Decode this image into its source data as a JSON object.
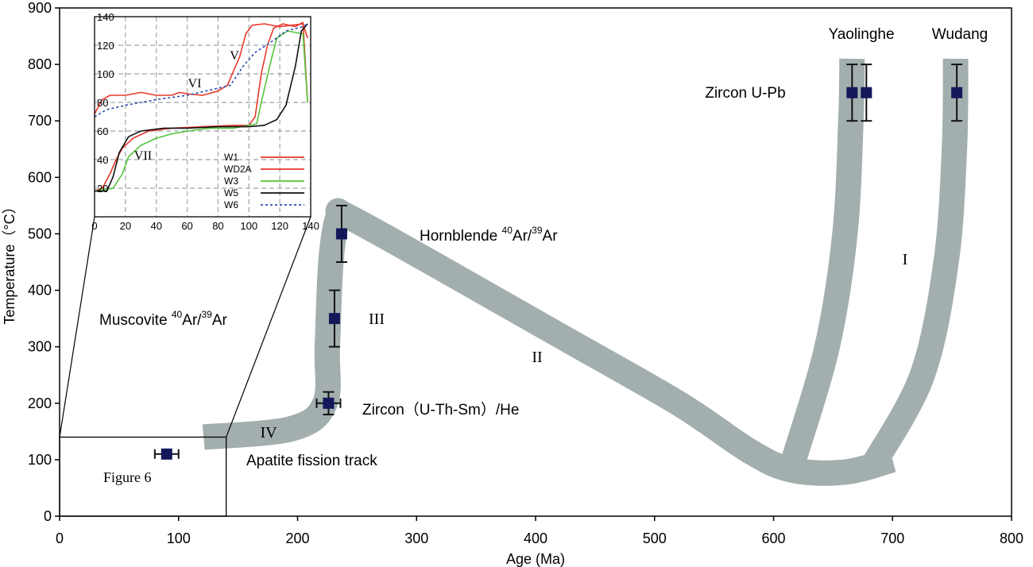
{
  "chart_data": {
    "type": "scatter",
    "xlabel": "Age (Ma)",
    "ylabel": "Temperature（°C）",
    "xlim": [
      0,
      800
    ],
    "ylim": [
      0,
      900
    ],
    "xticks": [
      0,
      100,
      200,
      300,
      400,
      500,
      600,
      700,
      800
    ],
    "yticks": [
      0,
      100,
      200,
      300,
      400,
      500,
      600,
      700,
      800,
      900
    ],
    "points": [
      {
        "name": "Zircon U-Pb (Yaolinghe)",
        "x": 666,
        "y": 750,
        "yerr": 50,
        "xerr": 0
      },
      {
        "name": "Zircon U-Pb (Yaolinghe)",
        "x": 678,
        "y": 750,
        "yerr": 50,
        "xerr": 0
      },
      {
        "name": "Zircon U-Pb (Wudang)",
        "x": 754,
        "y": 750,
        "yerr": 50,
        "xerr": 0
      },
      {
        "name": "Hornblende 40Ar/39Ar",
        "x": 237,
        "y": 500,
        "yerr": 50,
        "xerr": 0
      },
      {
        "name": "Muscovite 40Ar/39Ar",
        "x": 231,
        "y": 350,
        "yerr": 50,
        "xerr": 0
      },
      {
        "name": "Zircon (U-Th-Sm)/He",
        "x": 226,
        "y": 200,
        "yerr": 20,
        "xerr": 10
      },
      {
        "name": "Apatite fission track",
        "x": 90,
        "y": 110,
        "yerr": 0,
        "xerr": 10
      }
    ],
    "paths": [
      {
        "name": "Yaolinghe path",
        "points": [
          [
            617,
            100
          ],
          [
            645,
            300
          ],
          [
            660,
            500
          ],
          [
            665,
            700
          ],
          [
            666,
            810
          ]
        ]
      },
      {
        "name": "Wudang path",
        "points": [
          [
            685,
            95
          ],
          [
            725,
            250
          ],
          [
            745,
            450
          ],
          [
            752,
            650
          ],
          [
            753,
            810
          ]
        ]
      },
      {
        "name": "Main path",
        "points": [
          [
            121,
            140
          ],
          [
            195,
            155
          ],
          [
            223,
            200
          ],
          [
            225,
            300
          ],
          [
            228,
            450
          ],
          [
            234,
            530
          ],
          [
            243,
            530
          ],
          [
            320,
            440
          ],
          [
            420,
            320
          ],
          [
            520,
            200
          ],
          [
            580,
            115
          ],
          [
            615,
            82
          ],
          [
            660,
            78
          ],
          [
            700,
            100
          ]
        ]
      }
    ],
    "annotations": {
      "zircon_upb": "Zircon U-Pb",
      "yaolinghe": "Yaolinghe",
      "wudang": "Wudang",
      "hornblende_main": "Hornblende ",
      "hornblende_sup1": "40",
      "hornblende_mid": "Ar/",
      "hornblende_sup2": "39",
      "hornblende_end": "Ar",
      "muscovite_main": "Muscovite ",
      "muscovite_sup1": "40",
      "muscovite_mid": "Ar/",
      "muscovite_sup2": "39",
      "muscovite_end": "Ar",
      "zircon_he": "Zircon（U-Th-Sm）/He",
      "apatite": "Apatite fission track",
      "figure6": "Figure 6",
      "stage_I": "I",
      "stage_II": "II",
      "stage_III": "III",
      "stage_IV": "IV"
    },
    "inset": {
      "xlim": [
        0,
        140
      ],
      "ylim": [
        0,
        140
      ],
      "xticks": [
        0,
        20,
        40,
        60,
        80,
        100,
        120,
        140
      ],
      "yticks": [
        20,
        40,
        60,
        80,
        100,
        120,
        140
      ],
      "grid": true,
      "stage_labels": {
        "V": "V",
        "VI": "VI",
        "VII": "VII"
      },
      "series": [
        {
          "name": "W1",
          "color": "#e8382b",
          "dash": "",
          "points": [
            [
              0,
              18
            ],
            [
              5,
              20
            ],
            [
              10,
              30
            ],
            [
              14,
              40
            ],
            [
              18,
              48
            ],
            [
              25,
              55
            ],
            [
              35,
              60
            ],
            [
              50,
              62
            ],
            [
              70,
              63
            ],
            [
              90,
              64
            ],
            [
              100,
              64
            ],
            [
              104,
              70
            ],
            [
              108,
              100
            ],
            [
              112,
              120
            ],
            [
              116,
              132
            ],
            [
              122,
              135
            ],
            [
              130,
              133
            ],
            [
              135,
              136
            ],
            [
              138,
              80
            ]
          ]
        },
        {
          "name": "WD2A",
          "color": "#e8382b",
          "dash": "",
          "points": [
            [
              0,
              72
            ],
            [
              5,
              82
            ],
            [
              10,
              85
            ],
            [
              20,
              85
            ],
            [
              30,
              87
            ],
            [
              40,
              85
            ],
            [
              50,
              85
            ],
            [
              55,
              87
            ],
            [
              60,
              86
            ],
            [
              70,
              85
            ],
            [
              80,
              88
            ],
            [
              86,
              92
            ],
            [
              90,
              102
            ],
            [
              94,
              112
            ],
            [
              98,
              128
            ],
            [
              102,
              134
            ],
            [
              110,
              135
            ],
            [
              120,
              133
            ],
            [
              135,
              135
            ],
            [
              138,
              125
            ]
          ]
        },
        {
          "name": "W3",
          "color": "#55c43a",
          "dash": "",
          "points": [
            [
              0,
              18
            ],
            [
              12,
              20
            ],
            [
              18,
              30
            ],
            [
              22,
              42
            ],
            [
              30,
              50
            ],
            [
              40,
              55
            ],
            [
              50,
              58
            ],
            [
              60,
              60
            ],
            [
              75,
              62
            ],
            [
              90,
              62
            ],
            [
              105,
              65
            ],
            [
              108,
              80
            ],
            [
              114,
              108
            ],
            [
              118,
              125
            ],
            [
              125,
              130
            ],
            [
              135,
              128
            ],
            [
              138,
              80
            ]
          ]
        },
        {
          "name": "W5",
          "color": "#111111",
          "dash": "",
          "points": [
            [
              0,
              18
            ],
            [
              8,
              18
            ],
            [
              12,
              28
            ],
            [
              16,
              45
            ],
            [
              22,
              56
            ],
            [
              30,
              60
            ],
            [
              45,
              62
            ],
            [
              60,
              62
            ],
            [
              80,
              63
            ],
            [
              100,
              63
            ],
            [
              110,
              64
            ],
            [
              118,
              68
            ],
            [
              124,
              78
            ],
            [
              130,
              105
            ],
            [
              134,
              130
            ],
            [
              138,
              135
            ]
          ]
        },
        {
          "name": "W6",
          "color": "#2a4bb0",
          "dash": "3,3",
          "points": [
            [
              0,
              70
            ],
            [
              8,
              75
            ],
            [
              20,
              78
            ],
            [
              40,
              82
            ],
            [
              60,
              85
            ],
            [
              80,
              90
            ],
            [
              88,
              92
            ],
            [
              96,
              105
            ],
            [
              104,
              115
            ],
            [
              114,
              122
            ],
            [
              124,
              130
            ],
            [
              135,
              133
            ],
            [
              138,
              135
            ]
          ]
        }
      ]
    }
  }
}
